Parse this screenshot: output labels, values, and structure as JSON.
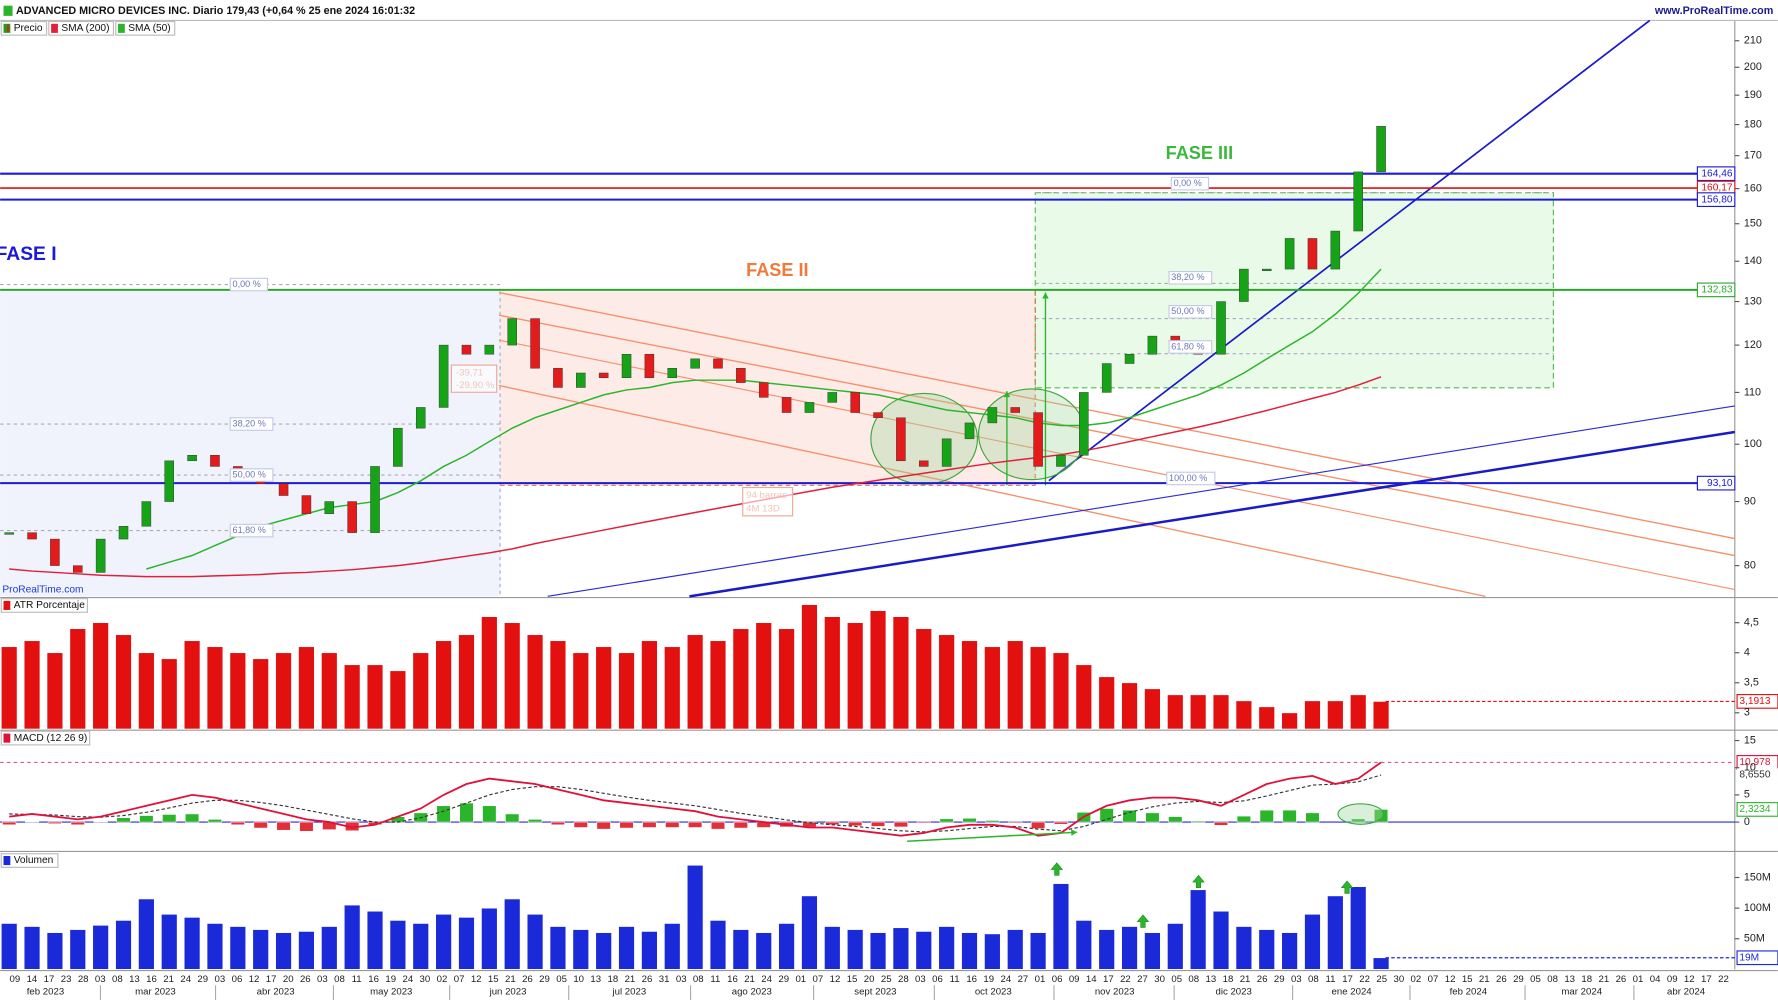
{
  "header": {
    "title": "ADVANCED MICRO DEVICES INC. Diario 179,43 (+0,64 % 25 ene 2024 16:01:32",
    "site": "www.ProRealTime.com",
    "watermark": "ProRealTime.com"
  },
  "x_axis": {
    "days": [
      "09",
      "14",
      "17",
      "23",
      "28",
      "03",
      "08",
      "13",
      "16",
      "21",
      "24",
      "29",
      "03",
      "06",
      "12",
      "17",
      "20",
      "26",
      "03",
      "08",
      "11",
      "16",
      "19",
      "24",
      "30",
      "02",
      "07",
      "12",
      "15",
      "21",
      "26",
      "29",
      "05",
      "10",
      "13",
      "18",
      "21",
      "26",
      "31",
      "03",
      "08",
      "11",
      "16",
      "21",
      "24",
      "29",
      "01",
      "07",
      "12",
      "15",
      "20",
      "25",
      "28",
      "03",
      "06",
      "11",
      "16",
      "19",
      "24",
      "27",
      "01",
      "06",
      "09",
      "14",
      "17",
      "22",
      "27",
      "30",
      "05",
      "08",
      "13",
      "18",
      "21",
      "26",
      "29",
      "03",
      "08",
      "11",
      "17",
      "22",
      "25",
      "30",
      "02",
      "07",
      "12",
      "15",
      "21",
      "26",
      "29",
      "05",
      "08",
      "13",
      "18",
      "21",
      "26",
      "01",
      "04",
      "09",
      "12",
      "17",
      "22"
    ],
    "months": [
      "feb 2023",
      "mar 2023",
      "abr 2023",
      "may 2023",
      "jun 2023",
      "jul 2023",
      "ago 2023",
      "sept 2023",
      "oct 2023",
      "nov 2023",
      "dic 2023",
      "ene 2024",
      "feb 2024",
      "mar 2024",
      "abr 2024"
    ]
  },
  "chart_data": [
    {
      "type": "candlestick",
      "name": "Precio",
      "log_scale": true,
      "ylim": [
        75.6,
        218
      ],
      "yticks": [
        80,
        90,
        100,
        110,
        120,
        130,
        140,
        150,
        160,
        170,
        180,
        190,
        200,
        210
      ],
      "colors": {
        "up": "#17a317",
        "down": "#e31b1b"
      },
      "values": [
        85,
        84,
        80,
        79,
        84,
        86,
        90,
        97,
        98,
        96,
        94,
        93,
        91,
        88,
        90,
        85,
        96,
        103,
        107,
        120,
        118,
        120,
        126,
        115,
        111,
        114,
        113,
        118,
        113,
        115,
        117,
        115,
        112,
        109,
        106,
        108,
        110,
        106,
        105,
        97,
        96,
        101,
        104,
        107,
        106,
        96,
        98,
        110,
        116,
        118,
        122,
        120,
        118,
        130,
        138,
        138,
        146,
        138,
        148,
        165,
        179.43
      ],
      "series": [
        {
          "name": "SMA (200)",
          "color": "#e0203a",
          "values": [
            79.5,
            79.2,
            79,
            78.8,
            78.6,
            78.5,
            78.4,
            78.4,
            78.4,
            78.5,
            78.6,
            78.7,
            78.9,
            79,
            79.2,
            79.4,
            79.7,
            80,
            80.4,
            80.9,
            81.4,
            81.9,
            82.5,
            83.3,
            84,
            84.7,
            85.4,
            86.1,
            86.8,
            87.5,
            88.2,
            88.9,
            89.6,
            90.3,
            91,
            91.7,
            92.4,
            93,
            93.6,
            94.2,
            94.8,
            95.4,
            96,
            96.6,
            97.1,
            97.6,
            98.1,
            98.8,
            99.6,
            100.5,
            101.4,
            102.3,
            103.2,
            104.2,
            105.3,
            106.4,
            107.6,
            108.8,
            110,
            111.5,
            113.2
          ]
        },
        {
          "name": "SMA (50)",
          "color": "#2bb52b",
          "values": [
            null,
            null,
            null,
            null,
            null,
            null,
            79.5,
            80.5,
            81.5,
            83,
            84.5,
            86,
            87,
            88,
            89,
            89.5,
            90,
            91.5,
            93.5,
            96,
            98,
            100.5,
            103,
            105,
            106.5,
            108,
            109.5,
            110.5,
            111,
            112,
            112.5,
            112.5,
            112.5,
            112,
            111.5,
            111,
            110.5,
            110,
            109.5,
            108.5,
            107.5,
            106.5,
            106,
            105.5,
            105,
            104,
            103.5,
            103.5,
            104,
            105,
            106.5,
            108,
            109.5,
            111.5,
            114,
            117,
            120,
            123,
            127,
            132,
            138
          ]
        }
      ],
      "levels": [
        {
          "value": 164.46,
          "label": "164,46",
          "color": "#1a1adc"
        },
        {
          "value": 160.17,
          "label": "160,17",
          "color": "#e01010"
        },
        {
          "value": 156.8,
          "label": "156,80",
          "color": "#1a1adc"
        },
        {
          "value": 132.83,
          "label": "132,83",
          "color": "#2ba82b"
        },
        {
          "value": 93.1,
          "label": "93,10",
          "color": "#1a1adc"
        }
      ],
      "annotations": [
        {
          "text": "FASE I",
          "color": "#1a1adc"
        },
        {
          "text": "FASE II",
          "color": "#f07a3a"
        },
        {
          "text": "FASE III",
          "color": "#3cb83c"
        },
        {
          "text": "0,00 %",
          "color": "#6a78b8"
        },
        {
          "text": "38,20 %",
          "color": "#6a78b8"
        },
        {
          "text": "50,00 %",
          "color": "#6a78b8"
        },
        {
          "text": "61,80 %",
          "color": "#6a78b8"
        },
        {
          "text": "0,00 %",
          "color": "#6a78b8"
        },
        {
          "text": "38,20 %",
          "color": "#6a78b8"
        },
        {
          "text": "50,00 %",
          "color": "#6a78b8"
        },
        {
          "text": "61,80 %",
          "color": "#6a78b8"
        },
        {
          "text": "100,00 %",
          "color": "#6a78b8"
        },
        {
          "text": "-39,71",
          "color": "#e06a4a"
        },
        {
          "text": "-29,90 %",
          "color": "#e06a4a"
        },
        {
          "text": "94 barras",
          "color": "#e06a4a"
        },
        {
          "text": "4M 13D",
          "color": "#e06a4a"
        }
      ]
    },
    {
      "type": "bar",
      "name": "ATR Porcentaje",
      "color": "#e31010",
      "ylim": [
        2.73,
        4.9
      ],
      "yticks": [
        {
          "value": 4.5,
          "label": "4,5"
        },
        4,
        {
          "value": 3.5,
          "label": "3,5"
        },
        3
      ],
      "values": [
        4.1,
        4.2,
        4.0,
        4.4,
        4.5,
        4.3,
        4.0,
        3.9,
        4.2,
        4.1,
        4.0,
        3.9,
        4.0,
        4.1,
        4.0,
        3.8,
        3.8,
        3.7,
        4.0,
        4.2,
        4.3,
        4.6,
        4.5,
        4.3,
        4.2,
        4.0,
        4.1,
        4.0,
        4.2,
        4.1,
        4.3,
        4.2,
        4.4,
        4.5,
        4.4,
        4.8,
        4.6,
        4.5,
        4.7,
        4.6,
        4.4,
        4.3,
        4.2,
        4.1,
        4.2,
        4.1,
        4.0,
        3.8,
        3.6,
        3.5,
        3.4,
        3.3,
        3.3,
        3.3,
        3.2,
        3.1,
        3.0,
        3.2,
        3.2,
        3.3,
        3.19
      ],
      "last_label": "3,1913"
    },
    {
      "type": "macd",
      "name": "MACD (12 26 9)",
      "ylim": [
        -5.2,
        16.7
      ],
      "yticks": [
        0,
        5,
        10,
        15
      ],
      "macd": {
        "color": "#e0103a",
        "last_label": "10,978",
        "values": [
          1,
          1.5,
          1,
          0.5,
          1,
          2,
          3,
          4,
          5,
          4.5,
          3.5,
          2.5,
          1.5,
          0.5,
          0,
          -1,
          -0.5,
          1,
          2.5,
          5,
          7,
          8,
          7.5,
          7,
          6,
          5,
          4,
          3.5,
          3,
          2.5,
          2,
          1,
          0.5,
          0,
          -0.5,
          -1,
          -1,
          -1.5,
          -2,
          -2.5,
          -2,
          -1,
          -0.5,
          -0.5,
          -1,
          -2.5,
          -2,
          1,
          3,
          4,
          4.5,
          4.5,
          4,
          3,
          5,
          7,
          8,
          8.5,
          7,
          8,
          10.978
        ]
      },
      "signal": {
        "color": "#333333",
        "last_label": "8,6550",
        "values": [
          1.5,
          1.4,
          1.3,
          1,
          0.9,
          1.2,
          1.8,
          2.6,
          3.5,
          4,
          4,
          3.6,
          3,
          2.2,
          1.4,
          0.6,
          0,
          0,
          0.8,
          2,
          3.5,
          5,
          6,
          6.5,
          6.5,
          6,
          5.3,
          4.6,
          4,
          3.5,
          3,
          2.3,
          1.6,
          1,
          0.4,
          -0.1,
          -0.5,
          -0.8,
          -1.2,
          -1.6,
          -1.8,
          -1.6,
          -1.2,
          -0.8,
          -0.8,
          -1.3,
          -1.6,
          -0.8,
          0.5,
          1.8,
          2.8,
          3.5,
          3.8,
          3.6,
          3.9,
          4.8,
          5.8,
          6.8,
          7,
          7.4,
          8.655
        ]
      },
      "histogram": {
        "colors": {
          "up": "#2bb52b",
          "down": "#e0303a"
        },
        "last_label": "2,3234",
        "values": [
          -0.5,
          0.1,
          -0.3,
          -0.5,
          0.1,
          0.8,
          1.2,
          1.4,
          1.5,
          0.5,
          -0.5,
          -1.1,
          -1.5,
          -1.7,
          -1.4,
          -1.6,
          -0.5,
          1,
          1.7,
          3,
          3.5,
          3,
          1.5,
          0.5,
          -0.5,
          -1,
          -1.3,
          -1.1,
          -1,
          -1,
          -1,
          -1.3,
          -1.1,
          -1,
          -0.9,
          -0.9,
          -0.5,
          -0.7,
          -0.8,
          -0.9,
          -0.2,
          0.6,
          0.7,
          0.3,
          -0.2,
          -1.2,
          -0.4,
          1.8,
          2.5,
          2.2,
          1.7,
          1,
          0.2,
          -0.6,
          1.1,
          2.2,
          2.2,
          1.7,
          0,
          0.6,
          2.3234
        ]
      }
    },
    {
      "type": "bar",
      "name": "Volumen",
      "color": "#1a2ad8",
      "ylim": [
        0,
        190.6
      ],
      "yticks": [
        {
          "value": 150,
          "label": "150M"
        },
        {
          "value": 100,
          "label": "100M"
        },
        {
          "value": 50,
          "label": "50M"
        }
      ],
      "values": [
        75,
        70,
        60,
        65,
        72,
        80,
        115,
        90,
        85,
        75,
        70,
        65,
        60,
        62,
        70,
        105,
        95,
        80,
        75,
        90,
        85,
        100,
        115,
        90,
        70,
        65,
        60,
        70,
        62,
        75,
        170,
        80,
        65,
        60,
        75,
        120,
        70,
        65,
        60,
        68,
        62,
        70,
        60,
        58,
        65,
        60,
        140,
        80,
        65,
        70,
        60,
        75,
        130,
        95,
        70,
        65,
        60,
        90,
        120,
        135,
        19
      ],
      "last_label": "19M"
    }
  ]
}
